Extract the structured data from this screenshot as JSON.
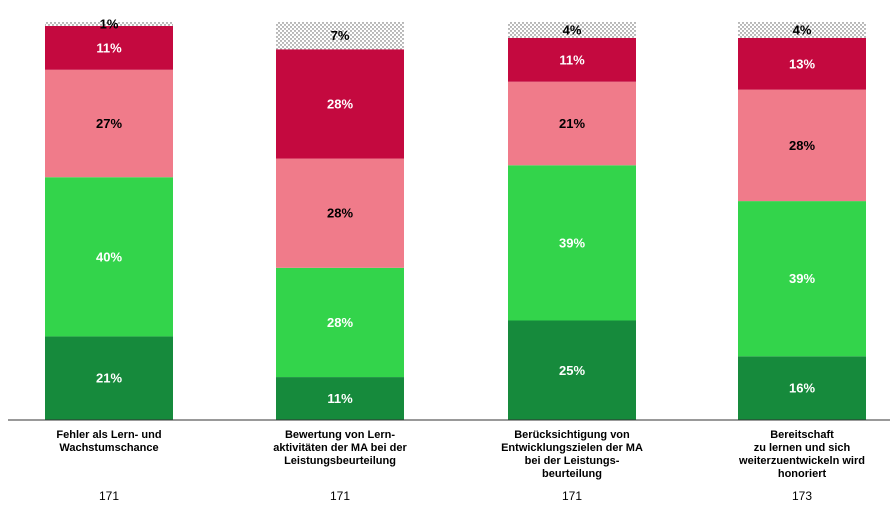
{
  "colors": {
    "dotted": "#ffffff",
    "dark_red": "#c4093f",
    "pink": "#f07b8a",
    "green": "#33d44b",
    "dark_green": "#168a3c"
  },
  "chart_data": {
    "type": "bar",
    "stacked": true,
    "orientation": "vertical",
    "grid": false,
    "legend": "none",
    "ylim": [
      0,
      100
    ],
    "categories": [
      [
        "Fehler als Lern- und",
        "Wachstumschance"
      ],
      [
        "Bewertung von Lern-",
        "aktivitäten der MA bei der",
        "Leistungsbeurteilung"
      ],
      [
        "Berücksichtigung von",
        "Entwicklungszielen der MA",
        "bei der Leistungs-",
        "beurteilung"
      ],
      [
        "Bereitschaft",
        "zu lernen und sich",
        "weiterzuentwickeln wird",
        "honoriert"
      ]
    ],
    "n": [
      "171",
      "171",
      "171",
      "173"
    ],
    "segments": [
      {
        "key": "dark_green",
        "values": [
          21,
          11,
          25,
          16
        ],
        "labels": [
          "21%",
          "11%",
          "25%",
          "16%"
        ],
        "text_color": "#ffffff"
      },
      {
        "key": "green",
        "values": [
          40,
          28,
          39,
          39
        ],
        "labels": [
          "40%",
          "28%",
          "39%",
          "39%"
        ],
        "text_color": "#ffffff"
      },
      {
        "key": "pink",
        "values": [
          27,
          28,
          21,
          28
        ],
        "labels": [
          "27%",
          "28%",
          "21%",
          "28%"
        ],
        "text_color": "#000000"
      },
      {
        "key": "dark_red",
        "values": [
          11,
          28,
          11,
          13
        ],
        "labels": [
          "11%",
          "28%",
          "11%",
          "13%"
        ],
        "text_color": "#ffffff"
      },
      {
        "key": "dotted",
        "values": [
          1,
          7,
          4,
          4
        ],
        "labels": [
          "1%",
          "7%",
          "4%",
          "4%"
        ],
        "text_color": "#000000"
      }
    ]
  }
}
